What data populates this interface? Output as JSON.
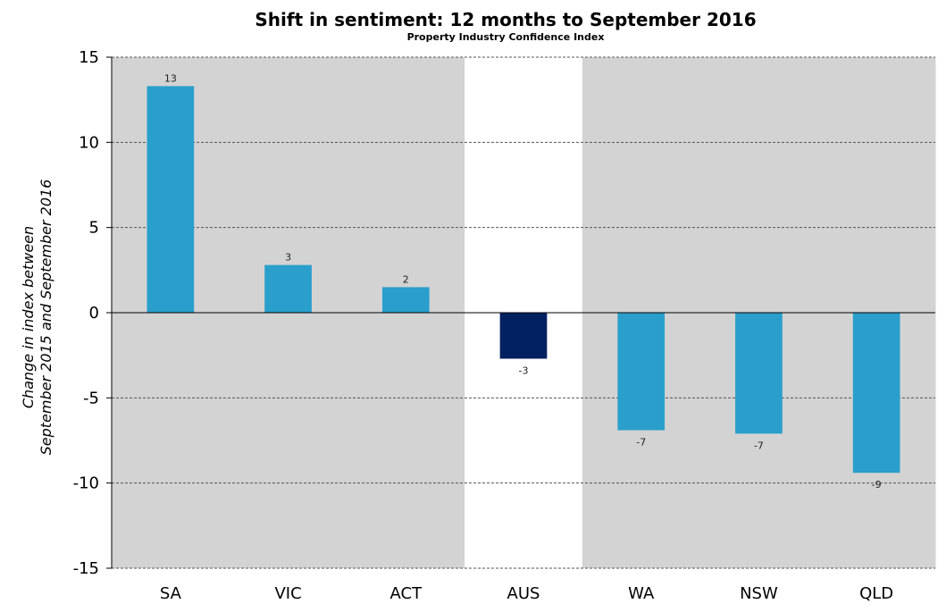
{
  "chart_data": {
    "type": "bar",
    "title": "Shift in sentiment: 12 months to September 2016",
    "subtitle": "Property Industry Confidence Index",
    "ylabel": "Change in index between\nSeptember 2015 and September 2016",
    "xlabel": "",
    "categories": [
      "SA",
      "VIC",
      "ACT",
      "AUS",
      "WA",
      "NSW",
      "QLD"
    ],
    "values": [
      13.3,
      2.8,
      1.5,
      -2.7,
      -6.9,
      -7.1,
      -9.4
    ],
    "data_labels": [
      "13",
      "3",
      "2",
      "-3",
      "-7",
      "-7",
      "-9"
    ],
    "highlight_category": "AUS",
    "ylim": [
      -15,
      15
    ],
    "yticks": [
      -15,
      -10,
      -5,
      0,
      5,
      10,
      15
    ],
    "grid": "horizontal dashed",
    "colors": {
      "bar": "#2a9fcc",
      "highlight_bar": "#002060",
      "shaded_background": "#d3d3d3",
      "highlight_background": "#ffffff",
      "gridline": "#555555"
    }
  }
}
